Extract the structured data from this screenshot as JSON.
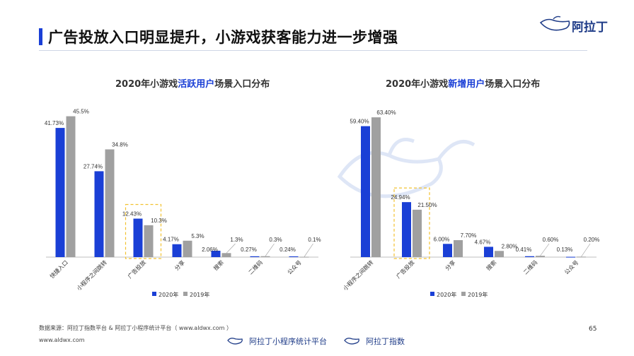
{
  "page": {
    "title": "广告投放入口明显提升，小游戏获客能力进一步增强",
    "logo_text": "阿拉丁",
    "page_number": "65",
    "source": "数据来源：阿拉丁指数平台 & 阿拉丁小程序统计平台（ www.aldwx.com ）",
    "site": "www.aldwx.com",
    "footer_brands": [
      "阿拉丁小程序统计平台",
      "阿拉丁指数"
    ],
    "watermark_icon": "aladdin-lamp-icon",
    "colors": {
      "accent": "#1a3fd6",
      "series_2020": "#1a3fd6",
      "series_2019": "#a0a0a0",
      "highlight_box": "#f2c230"
    }
  },
  "chart_data": [
    {
      "type": "bar",
      "title_prefix": "2020年小游戏",
      "title_highlight": "活跃用户",
      "title_suffix": "场景入口分布",
      "categories": [
        "快捷入口",
        "小程序之间跳转",
        "广告投放",
        "分享",
        "搜索",
        "二维码",
        "公众号"
      ],
      "series": [
        {
          "name": "2020年",
          "values": [
            41.73,
            27.74,
            12.43,
            4.17,
            2.06,
            0.27,
            0.24
          ],
          "labels": [
            "41.73%",
            "27.74%",
            "12.43%",
            "4.17%",
            "2.06%",
            "0.27%",
            "0.24%"
          ]
        },
        {
          "name": "2019年",
          "values": [
            45.5,
            34.8,
            10.3,
            5.3,
            1.3,
            0.3,
            0.1
          ],
          "labels": [
            "45.5%",
            "34.8%",
            "10.3%",
            "5.3%",
            "1.3%",
            "0.3%",
            "0.1%"
          ]
        }
      ],
      "highlight_category": "广告投放",
      "ylim": [
        0,
        47
      ],
      "legend": "bottom"
    },
    {
      "type": "bar",
      "title_prefix": "2020年小游戏",
      "title_highlight": "新增用户",
      "title_suffix": "场景入口分布",
      "categories": [
        "小程序之间跳转",
        "广告投放",
        "分享",
        "搜索",
        "二维码",
        "公众号"
      ],
      "series": [
        {
          "name": "2020年",
          "values": [
            59.4,
            24.94,
            6.0,
            4.67,
            0.41,
            0.13
          ],
          "labels": [
            "59.40%",
            "24.94%",
            "6.00%",
            "4.67%",
            "0.41%",
            "0.13%"
          ]
        },
        {
          "name": "2019年",
          "values": [
            63.4,
            21.5,
            7.7,
            2.8,
            0.6,
            0.2
          ],
          "labels": [
            "63.40%",
            "21.50%",
            "7.70%",
            "2.80%",
            "0.60%",
            "0.20%"
          ]
        }
      ],
      "highlight_category": "广告投放",
      "ylim": [
        0,
        66
      ],
      "legend": "bottom"
    }
  ]
}
